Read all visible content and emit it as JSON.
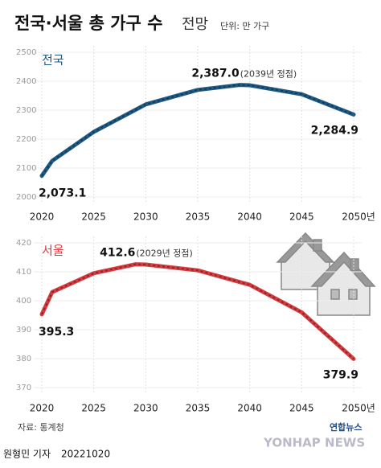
{
  "title": "전국·서울 총 가구 수",
  "title_suffix": "전망",
  "unit": "단위: 만 가구",
  "source": "자료: 통계청",
  "credit": "원형민 기자",
  "date": "20221020",
  "logo": "연합뉴스",
  "logo_en": "YONHAP NEWS",
  "chart_data": [
    {
      "type": "line",
      "x": [
        2020,
        2021,
        2025,
        2030,
        2035,
        2039,
        2040,
        2045,
        2050
      ],
      "series": [
        {
          "name": "전국",
          "color": "#1f5a85",
          "values": [
            2073.1,
            2125,
            2225,
            2320,
            2370,
            2387.0,
            2386,
            2355,
            2284.9
          ],
          "value_labels": [
            "2,073.1",
            null,
            null,
            null,
            null,
            "2,387.0",
            null,
            null,
            "2,284.9"
          ]
        }
      ],
      "annotations": [
        "(2039년 정점)"
      ],
      "xlim": [
        2020,
        2050
      ],
      "xticks": [
        2020,
        2025,
        2030,
        2035,
        2040,
        2045,
        {
          "value": 2050,
          "label": "2050년"
        }
      ],
      "ylim": [
        2000,
        2500
      ],
      "yticks": [
        2000,
        2100,
        2200,
        2300,
        2400,
        2500
      ],
      "grid": true
    },
    {
      "type": "line",
      "x": [
        2020,
        2021,
        2025,
        2029,
        2030,
        2035,
        2040,
        2045,
        2050
      ],
      "series": [
        {
          "name": "서울",
          "color": "#d63b3f",
          "values": [
            395.3,
            403,
            409.5,
            412.6,
            412.5,
            410.5,
            405.5,
            396,
            379.9
          ],
          "value_labels": [
            "395.3",
            null,
            null,
            "412.6",
            null,
            null,
            null,
            null,
            "379.9"
          ]
        }
      ],
      "annotations": [
        "(2029년 정점)"
      ],
      "xlim": [
        2020,
        2050
      ],
      "xticks": [
        2020,
        2025,
        2030,
        2035,
        2040,
        2045,
        {
          "value": 2050,
          "label": "2050년"
        }
      ],
      "ylim": [
        370,
        420
      ],
      "yticks": [
        370,
        380,
        390,
        400,
        410,
        420
      ],
      "grid": true
    }
  ]
}
